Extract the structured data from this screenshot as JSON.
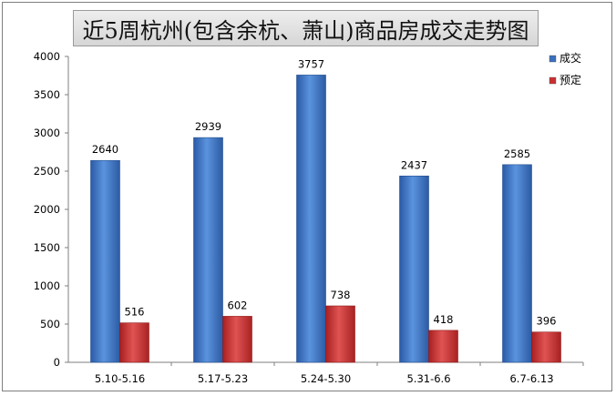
{
  "chart_data": {
    "type": "bar",
    "title": "近5周杭州(包含余杭、萧山)商品房成交走势图",
    "categories": [
      "5.10-5.16",
      "5.17-5.23",
      "5.24-5.30",
      "5.31-6.6",
      "6.7-6.13"
    ],
    "series": [
      {
        "name": "成交",
        "values": [
          2640,
          2939,
          3757,
          2437,
          2585
        ],
        "color": "#3a70c0"
      },
      {
        "name": "预定",
        "values": [
          516,
          602,
          738,
          418,
          396
        ],
        "color": "#cc2f2f"
      }
    ],
    "ylim": [
      0,
      4000
    ],
    "yticks": [
      0,
      500,
      1000,
      1500,
      2000,
      2500,
      3000,
      3500,
      4000
    ],
    "legend": "top-right",
    "grid": false,
    "data_labels": true,
    "xlabel": "",
    "ylabel": ""
  }
}
